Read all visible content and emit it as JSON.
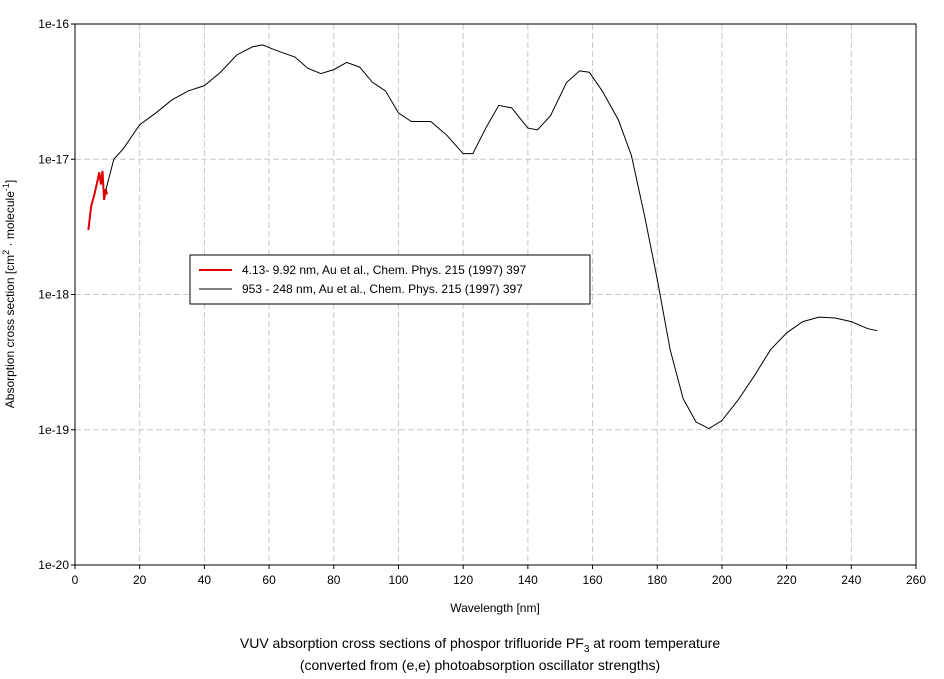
{
  "chart_data": {
    "type": "line",
    "title": [
      "VUV absorption cross sections of phospor trifluoride PF",
      "3",
      " at room temperature"
    ],
    "subtitle": "(converted from (e,e) photoabsorption oscillator strengths)",
    "xlabel": "Wavelength [nm]",
    "ylabel": [
      "Absorption cross section [cm",
      "2",
      " · molecule",
      "-1",
      "]"
    ],
    "xlim": [
      0,
      260
    ],
    "xticks": [
      0,
      20,
      40,
      60,
      80,
      100,
      120,
      140,
      160,
      180,
      200,
      220,
      240,
      260
    ],
    "ylim": [
      1e-20,
      1e-16
    ],
    "yticks": [
      1e-20,
      1e-19,
      1e-18,
      1e-17,
      1e-16
    ],
    "log_y": true,
    "grid": true,
    "legend": "left",
    "series": [
      {
        "name": "4.13- 9.92 nm, Au et al., Chem. Phys. 215 (1997) 397",
        "color": "#e00000",
        "x": [
          4.13,
          5,
          6,
          7,
          7.5,
          8,
          8.5,
          9,
          9.5,
          9.92
        ],
        "values": [
          3e-18,
          4.5e-18,
          5.5e-18,
          7e-18,
          8e-18,
          6.5e-18,
          8.2e-18,
          5e-18,
          6e-18,
          5.5e-18
        ]
      },
      {
        "name": "953 - 248 nm, Au et al., Chem. Phys. 215 (1997) 397",
        "color": "#000000",
        "x": [
          9.5,
          12,
          15,
          20,
          25,
          30,
          35,
          40,
          45,
          50,
          55,
          58,
          62,
          68,
          72,
          76,
          80,
          84,
          88,
          92,
          96,
          100,
          104,
          110,
          115,
          120,
          123,
          127,
          131,
          135,
          140,
          143,
          147,
          152,
          156,
          159,
          163,
          168,
          172,
          176,
          180,
          184,
          188,
          192,
          196,
          200,
          205,
          210,
          215,
          220,
          225,
          230,
          235,
          240,
          245,
          248
        ],
        "values": [
          5.9e-18,
          1e-17,
          1.2e-17,
          1.8e-17,
          2.2e-17,
          2.75e-17,
          3.2e-17,
          3.5e-17,
          4.4e-17,
          5.9e-17,
          6.8e-17,
          7e-17,
          6.4e-17,
          5.7e-17,
          4.7e-17,
          4.3e-17,
          4.6e-17,
          5.2e-17,
          4.8e-17,
          3.7e-17,
          3.2e-17,
          2.2e-17,
          1.9e-17,
          1.9e-17,
          1.5e-17,
          1.1e-17,
          1.1e-17,
          1.7e-17,
          2.5e-17,
          2.4e-17,
          1.7e-17,
          1.65e-17,
          2.1e-17,
          3.7e-17,
          4.5e-17,
          4.4e-17,
          3.2e-17,
          1.95e-17,
          1.07e-17,
          3.9e-18,
          1.3e-18,
          3.9e-19,
          1.7e-19,
          1.14e-19,
          1.02e-19,
          1.17e-19,
          1.66e-19,
          2.5e-19,
          3.9e-19,
          5.2e-19,
          6.3e-19,
          6.8e-19,
          6.7e-19,
          6.3e-19,
          5.6e-19,
          5.4e-19
        ]
      }
    ]
  }
}
